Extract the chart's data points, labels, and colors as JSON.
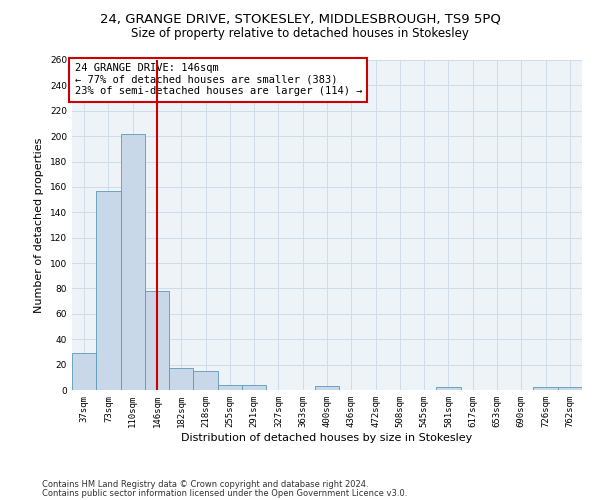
{
  "title": "24, GRANGE DRIVE, STOKESLEY, MIDDLESBROUGH, TS9 5PQ",
  "subtitle": "Size of property relative to detached houses in Stokesley",
  "xlabel": "Distribution of detached houses by size in Stokesley",
  "ylabel": "Number of detached properties",
  "bar_labels": [
    "37sqm",
    "73sqm",
    "110sqm",
    "146sqm",
    "182sqm",
    "218sqm",
    "255sqm",
    "291sqm",
    "327sqm",
    "363sqm",
    "400sqm",
    "436sqm",
    "472sqm",
    "508sqm",
    "545sqm",
    "581sqm",
    "617sqm",
    "653sqm",
    "690sqm",
    "726sqm",
    "762sqm"
  ],
  "bar_values": [
    29,
    157,
    202,
    78,
    17,
    15,
    4,
    4,
    0,
    0,
    3,
    0,
    0,
    0,
    0,
    2,
    0,
    0,
    0,
    2,
    2
  ],
  "bar_color": "#c8d8e8",
  "bar_edge_color": "#5a9aba",
  "vline_x_index": 3,
  "vline_color": "#cc0000",
  "annotation_text": "24 GRANGE DRIVE: 146sqm\n← 77% of detached houses are smaller (383)\n23% of semi-detached houses are larger (114) →",
  "annotation_box_color": "#ffffff",
  "annotation_box_edge_color": "#cc0000",
  "ylim": [
    0,
    260
  ],
  "yticks": [
    0,
    20,
    40,
    60,
    80,
    100,
    120,
    140,
    160,
    180,
    200,
    220,
    240,
    260
  ],
  "grid_color": "#d0dce8",
  "bg_color": "#eef3f8",
  "footer_line1": "Contains HM Land Registry data © Crown copyright and database right 2024.",
  "footer_line2": "Contains public sector information licensed under the Open Government Licence v3.0.",
  "title_fontsize": 9.5,
  "subtitle_fontsize": 8.5,
  "xlabel_fontsize": 8,
  "ylabel_fontsize": 8,
  "tick_fontsize": 6.5,
  "annotation_fontsize": 7.5,
  "footer_fontsize": 6
}
